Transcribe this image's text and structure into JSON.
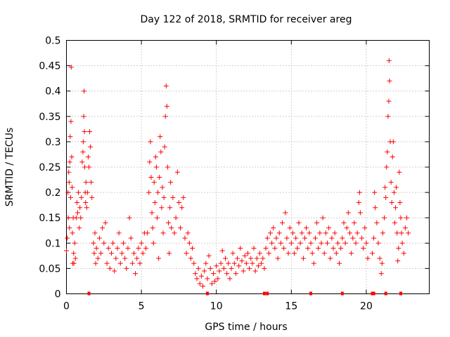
{
  "chart_data": {
    "type": "scatter",
    "title": "Day 122 of 2018, SRMTID for receiver areg",
    "xlabel": "GPS time / hours",
    "ylabel": "SRMTID / TECUs",
    "xlim": [
      0,
      24.2
    ],
    "ylim": [
      0,
      0.5
    ],
    "xticks": [
      0,
      5,
      10,
      15,
      20
    ],
    "xtick_labels": [
      "0",
      "5",
      "10",
      "15",
      "20"
    ],
    "yticks": [
      0,
      0.05,
      0.1,
      0.15,
      0.2,
      0.25,
      0.3,
      0.35,
      0.4,
      0.45,
      0.5
    ],
    "ytick_labels": [
      "0",
      "0.05",
      "0.1",
      "0.15",
      "0.2",
      "0.25",
      "0.3",
      "0.35",
      "0.4",
      "0.45",
      "0.5"
    ],
    "grid": true,
    "marker": "+",
    "color": "#ff0000",
    "series": [
      {
        "name": "SRMTID",
        "points": [
          [
            0.0,
            0.085
          ],
          [
            0.05,
            0.11
          ],
          [
            0.1,
            0.2
          ],
          [
            0.12,
            0.15
          ],
          [
            0.15,
            0.24
          ],
          [
            0.18,
            0.22
          ],
          [
            0.2,
            0.13
          ],
          [
            0.22,
            0.26
          ],
          [
            0.25,
            0.31
          ],
          [
            0.28,
            0.19
          ],
          [
            0.3,
            0.34
          ],
          [
            0.32,
            0.447
          ],
          [
            0.35,
            0.27
          ],
          [
            0.38,
            0.21
          ],
          [
            0.4,
            0.12
          ],
          [
            0.42,
            0.06
          ],
          [
            0.45,
            0.15
          ],
          [
            0.48,
            0.08
          ],
          [
            0.5,
            0.06
          ],
          [
            0.55,
            0.1
          ],
          [
            0.6,
            0.07
          ],
          [
            0.65,
            0.15
          ],
          [
            0.7,
            0.18
          ],
          [
            0.75,
            0.16
          ],
          [
            0.8,
            0.2
          ],
          [
            0.85,
            0.13
          ],
          [
            0.9,
            0.17
          ],
          [
            0.95,
            0.15
          ],
          [
            1.0,
            0.19
          ],
          [
            1.05,
            0.26
          ],
          [
            1.1,
            0.28
          ],
          [
            1.12,
            0.3
          ],
          [
            1.15,
            0.35
          ],
          [
            1.18,
            0.4
          ],
          [
            1.2,
            0.32
          ],
          [
            1.22,
            0.25
          ],
          [
            1.25,
            0.2
          ],
          [
            1.28,
            0.18
          ],
          [
            1.3,
            0.22
          ],
          [
            1.35,
            0.17
          ],
          [
            1.4,
            0.2
          ],
          [
            1.45,
            0.27
          ],
          [
            1.5,
            0.25
          ],
          [
            1.55,
            0.32
          ],
          [
            1.6,
            0.29
          ],
          [
            1.65,
            0.22
          ],
          [
            1.7,
            0.19
          ],
          [
            1.8,
            0.1
          ],
          [
            1.85,
            0.08
          ],
          [
            1.9,
            0.12
          ],
          [
            1.95,
            0.06
          ],
          [
            2.0,
            0.09
          ],
          [
            2.1,
            0.07
          ],
          [
            2.2,
            0.11
          ],
          [
            2.3,
            0.08
          ],
          [
            2.4,
            0.13
          ],
          [
            2.5,
            0.1
          ],
          [
            2.6,
            0.14
          ],
          [
            2.7,
            0.06
          ],
          [
            2.8,
            0.09
          ],
          [
            2.9,
            0.05
          ],
          [
            3.0,
            0.08
          ],
          [
            3.1,
            0.1
          ],
          [
            3.2,
            0.045
          ],
          [
            3.3,
            0.07
          ],
          [
            3.4,
            0.09
          ],
          [
            3.5,
            0.12
          ],
          [
            3.6,
            0.06
          ],
          [
            3.7,
            0.08
          ],
          [
            3.8,
            0.1
          ],
          [
            3.9,
            0.07
          ],
          [
            4.0,
            0.05
          ],
          [
            4.1,
            0.09
          ],
          [
            4.2,
            0.15
          ],
          [
            4.3,
            0.11
          ],
          [
            4.4,
            0.06
          ],
          [
            4.5,
            0.08
          ],
          [
            4.6,
            0.04
          ],
          [
            4.7,
            0.07
          ],
          [
            4.8,
            0.09
          ],
          [
            4.9,
            0.06
          ],
          [
            5.0,
            0.1
          ],
          [
            5.1,
            0.08
          ],
          [
            5.2,
            0.12
          ],
          [
            5.3,
            0.09
          ],
          [
            5.4,
            0.12
          ],
          [
            5.5,
            0.2
          ],
          [
            5.55,
            0.26
          ],
          [
            5.6,
            0.3
          ],
          [
            5.65,
            0.23
          ],
          [
            5.7,
            0.16
          ],
          [
            5.75,
            0.13
          ],
          [
            5.8,
            0.1
          ],
          [
            5.85,
            0.22
          ],
          [
            5.9,
            0.18
          ],
          [
            5.95,
            0.27
          ],
          [
            6.0,
            0.25
          ],
          [
            6.05,
            0.15
          ],
          [
            6.1,
            0.2
          ],
          [
            6.15,
            0.07
          ],
          [
            6.2,
            0.23
          ],
          [
            6.25,
            0.31
          ],
          [
            6.3,
            0.28
          ],
          [
            6.35,
            0.17
          ],
          [
            6.4,
            0.21
          ],
          [
            6.45,
            0.12
          ],
          [
            6.5,
            0.19
          ],
          [
            6.55,
            0.29
          ],
          [
            6.6,
            0.35
          ],
          [
            6.65,
            0.41
          ],
          [
            6.7,
            0.37
          ],
          [
            6.75,
            0.25
          ],
          [
            6.8,
            0.14
          ],
          [
            6.85,
            0.08
          ],
          [
            6.9,
            0.17
          ],
          [
            6.95,
            0.22
          ],
          [
            7.0,
            0.13
          ],
          [
            7.1,
            0.19
          ],
          [
            7.2,
            0.12
          ],
          [
            7.3,
            0.15
          ],
          [
            7.4,
            0.24
          ],
          [
            7.5,
            0.18
          ],
          [
            7.6,
            0.13
          ],
          [
            7.7,
            0.17
          ],
          [
            7.8,
            0.19
          ],
          [
            7.9,
            0.11
          ],
          [
            8.0,
            0.08
          ],
          [
            8.1,
            0.12
          ],
          [
            8.2,
            0.1
          ],
          [
            8.3,
            0.07
          ],
          [
            8.4,
            0.09
          ],
          [
            8.5,
            0.06
          ],
          [
            8.6,
            0.04
          ],
          [
            8.7,
            0.03
          ],
          [
            8.8,
            0.05
          ],
          [
            8.9,
            0.02
          ],
          [
            9.0,
            0.035
          ],
          [
            9.1,
            0.015
          ],
          [
            9.2,
            0.045
          ],
          [
            9.3,
            0.06
          ],
          [
            9.4,
            0.03
          ],
          [
            9.5,
            0.075
          ],
          [
            9.6,
            0.05
          ],
          [
            9.7,
            0.02
          ],
          [
            9.8,
            0.04
          ],
          [
            9.9,
            0.025
          ],
          [
            10.0,
            0.055
          ],
          [
            10.1,
            0.03
          ],
          [
            10.2,
            0.045
          ],
          [
            10.3,
            0.06
          ],
          [
            10.4,
            0.085
          ],
          [
            10.5,
            0.05
          ],
          [
            10.6,
            0.07
          ],
          [
            10.7,
            0.04
          ],
          [
            10.8,
            0.06
          ],
          [
            10.9,
            0.03
          ],
          [
            11.0,
            0.05
          ],
          [
            11.1,
            0.08
          ],
          [
            11.2,
            0.06
          ],
          [
            11.3,
            0.04
          ],
          [
            11.4,
            0.07
          ],
          [
            11.5,
            0.055
          ],
          [
            11.6,
            0.09
          ],
          [
            11.7,
            0.065
          ],
          [
            11.8,
            0.045
          ],
          [
            11.9,
            0.075
          ],
          [
            12.0,
            0.06
          ],
          [
            12.1,
            0.08
          ],
          [
            12.2,
            0.05
          ],
          [
            12.3,
            0.07
          ],
          [
            12.4,
            0.06
          ],
          [
            12.5,
            0.09
          ],
          [
            12.6,
            0.045
          ],
          [
            12.7,
            0.07
          ],
          [
            12.8,
            0.055
          ],
          [
            12.9,
            0.08
          ],
          [
            13.0,
            0.06
          ],
          [
            13.1,
            0.07
          ],
          [
            13.2,
            0.05
          ],
          [
            13.3,
            0.09
          ],
          [
            13.4,
            0.11
          ],
          [
            13.5,
            0.08
          ],
          [
            13.6,
            0.12
          ],
          [
            13.7,
            0.1
          ],
          [
            13.8,
            0.13
          ],
          [
            13.9,
            0.09
          ],
          [
            14.0,
            0.11
          ],
          [
            14.1,
            0.07
          ],
          [
            14.2,
            0.12
          ],
          [
            14.3,
            0.1
          ],
          [
            14.4,
            0.14
          ],
          [
            14.5,
            0.09
          ],
          [
            14.6,
            0.16
          ],
          [
            14.7,
            0.11
          ],
          [
            14.8,
            0.08
          ],
          [
            14.9,
            0.13
          ],
          [
            15.0,
            0.1
          ],
          [
            15.1,
            0.12
          ],
          [
            15.2,
            0.08
          ],
          [
            15.3,
            0.11
          ],
          [
            15.4,
            0.09
          ],
          [
            15.5,
            0.14
          ],
          [
            15.6,
            0.1
          ],
          [
            15.7,
            0.12
          ],
          [
            15.8,
            0.07
          ],
          [
            15.9,
            0.11
          ],
          [
            16.0,
            0.13
          ],
          [
            16.1,
            0.09
          ],
          [
            16.2,
            0.12
          ],
          [
            16.3,
            0.1
          ],
          [
            16.4,
            0.08
          ],
          [
            16.5,
            0.06
          ],
          [
            16.6,
            0.11
          ],
          [
            16.7,
            0.14
          ],
          [
            16.8,
            0.09
          ],
          [
            16.9,
            0.12
          ],
          [
            17.0,
            0.1
          ],
          [
            17.1,
            0.15
          ],
          [
            17.2,
            0.08
          ],
          [
            17.3,
            0.12
          ],
          [
            17.4,
            0.1
          ],
          [
            17.5,
            0.13
          ],
          [
            17.6,
            0.07
          ],
          [
            17.7,
            0.11
          ],
          [
            17.8,
            0.09
          ],
          [
            17.9,
            0.12
          ],
          [
            18.0,
            0.08
          ],
          [
            18.1,
            0.1
          ],
          [
            18.2,
            0.06
          ],
          [
            18.3,
            0.09
          ],
          [
            18.4,
            0.11
          ],
          [
            18.5,
            0.14
          ],
          [
            18.6,
            0.1
          ],
          [
            18.7,
            0.13
          ],
          [
            18.8,
            0.16
          ],
          [
            18.9,
            0.12
          ],
          [
            19.0,
            0.08
          ],
          [
            19.1,
            0.11
          ],
          [
            19.2,
            0.14
          ],
          [
            19.3,
            0.1
          ],
          [
            19.4,
            0.12
          ],
          [
            19.5,
            0.18
          ],
          [
            19.55,
            0.2
          ],
          [
            19.6,
            0.16
          ],
          [
            19.7,
            0.11
          ],
          [
            19.8,
            0.09
          ],
          [
            19.9,
            0.13
          ],
          [
            20.0,
            0.1
          ],
          [
            20.1,
            0.07
          ],
          [
            20.4,
            0.08
          ],
          [
            20.5,
            0.11
          ],
          [
            20.55,
            0.2
          ],
          [
            20.6,
            0.17
          ],
          [
            20.7,
            0.14
          ],
          [
            20.8,
            0.1
          ],
          [
            20.9,
            0.07
          ],
          [
            21.0,
            0.04
          ],
          [
            21.05,
            0.06
          ],
          [
            21.1,
            0.12
          ],
          [
            21.2,
            0.15
          ],
          [
            21.25,
            0.21
          ],
          [
            21.3,
            0.19
          ],
          [
            21.35,
            0.25
          ],
          [
            21.4,
            0.28
          ],
          [
            21.45,
            0.35
          ],
          [
            21.5,
            0.38
          ],
          [
            21.52,
            0.46
          ],
          [
            21.55,
            0.42
          ],
          [
            21.6,
            0.3
          ],
          [
            21.65,
            0.22
          ],
          [
            21.7,
            0.18
          ],
          [
            21.75,
            0.27
          ],
          [
            21.8,
            0.3
          ],
          [
            21.85,
            0.2
          ],
          [
            21.9,
            0.14
          ],
          [
            21.95,
            0.17
          ],
          [
            22.0,
            0.21
          ],
          [
            22.05,
            0.12
          ],
          [
            22.1,
            0.065
          ],
          [
            22.15,
            0.09
          ],
          [
            22.2,
            0.24
          ],
          [
            22.25,
            0.18
          ],
          [
            22.3,
            0.15
          ],
          [
            22.35,
            0.12
          ],
          [
            22.4,
            0.1
          ],
          [
            22.5,
            0.08
          ],
          [
            22.6,
            0.13
          ],
          [
            22.7,
            0.15
          ],
          [
            22.8,
            0.12
          ]
        ]
      }
    ],
    "baseline_markers_x": [
      1.5,
      9.4,
      13.2,
      13.4,
      16.3,
      18.4,
      20.4,
      20.5,
      21.3,
      22.3
    ]
  }
}
